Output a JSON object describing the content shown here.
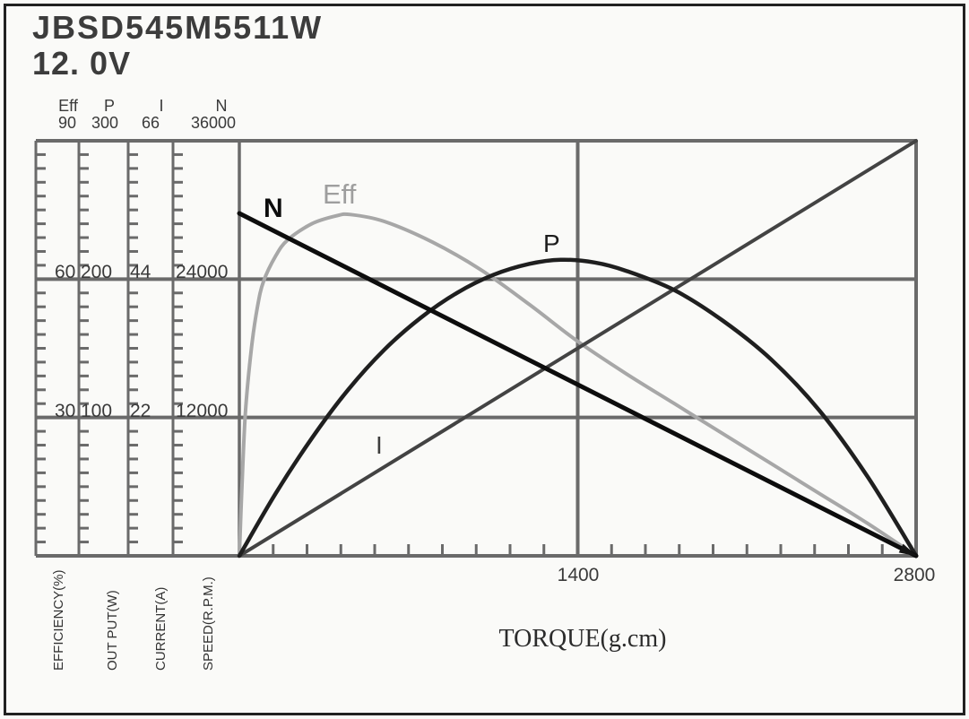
{
  "header": {
    "model": "JBSD545M5511W",
    "voltage": "12. 0V"
  },
  "scales": [
    {
      "name": "Eff",
      "top_value": "90",
      "mid_value": "60",
      "low_value": "30",
      "axis_label": "EFFICIENCY(%)"
    },
    {
      "name": "P",
      "top_value": "300",
      "mid_value": "200",
      "low_value": "100",
      "axis_label": "OUT PUT(W)"
    },
    {
      "name": "I",
      "top_value": "66",
      "mid_value": "44",
      "low_value": "22",
      "axis_label": "CURRENT(A)"
    },
    {
      "name": "N",
      "top_value": "36000",
      "mid_value": "24000",
      "low_value": "12000",
      "axis_label": "SPEED(R.P.M.)"
    }
  ],
  "x_axis": {
    "mid_tick": "1400",
    "end_tick": "2800",
    "label": "TORQUE(g.cm)"
  },
  "curve_labels": {
    "n": "N",
    "eff": "Eff",
    "p": "P",
    "i": "I"
  },
  "chart_data": {
    "type": "line",
    "title": "JBSD545M5511W 12.0V motor performance curves",
    "xlabel": "TORQUE(g.cm)",
    "x_range": [
      0,
      2800
    ],
    "x_major_ticks": [
      1400,
      2800
    ],
    "x_minor_tick_step": 140,
    "grid": true,
    "grid_color": "#6a6a6a",
    "legend_position": "on-curve",
    "axes": [
      {
        "name": "EFFICIENCY(%)",
        "range": [
          0,
          90
        ],
        "major_ticks": [
          30,
          60,
          90
        ]
      },
      {
        "name": "OUT PUT(W)",
        "range": [
          0,
          300
        ],
        "major_ticks": [
          100,
          200,
          300
        ]
      },
      {
        "name": "CURRENT(A)",
        "range": [
          0,
          66
        ],
        "major_ticks": [
          22,
          44,
          66
        ]
      },
      {
        "name": "SPEED(R.P.M.)",
        "range": [
          0,
          36000
        ],
        "major_ticks": [
          12000,
          24000,
          36000
        ]
      }
    ],
    "series": [
      {
        "name": "Eff",
        "axis": "EFFICIENCY(%)",
        "color": "#a7a7a7",
        "points": [
          [
            0,
            0
          ],
          [
            10,
            14
          ],
          [
            25,
            31
          ],
          [
            50,
            45
          ],
          [
            75,
            54
          ],
          [
            100,
            59.5
          ],
          [
            150,
            65
          ],
          [
            200,
            68.5
          ],
          [
            300,
            72
          ],
          [
            400,
            73.7
          ],
          [
            460,
            74
          ],
          [
            600,
            72.5
          ],
          [
            800,
            68
          ],
          [
            1000,
            62
          ],
          [
            1200,
            54.5
          ],
          [
            1400,
            46.5
          ],
          [
            1600,
            39.5
          ],
          [
            1800,
            33
          ],
          [
            2000,
            26.5
          ],
          [
            2200,
            20
          ],
          [
            2400,
            13.5
          ],
          [
            2600,
            7
          ],
          [
            2800,
            0
          ]
        ]
      },
      {
        "name": "I",
        "axis": "CURRENT(A)",
        "color": "#434343",
        "points": [
          [
            0,
            0
          ],
          [
            2800,
            66
          ]
        ]
      },
      {
        "name": "P",
        "axis": "OUT PUT(W)",
        "color": "#1f1f1f",
        "points": [
          [
            0,
            0
          ],
          [
            150,
            45
          ],
          [
            300,
            85
          ],
          [
            450,
            120
          ],
          [
            600,
            149
          ],
          [
            750,
            172
          ],
          [
            900,
            190
          ],
          [
            1050,
            203
          ],
          [
            1200,
            211
          ],
          [
            1330,
            214
          ],
          [
            1470,
            212
          ],
          [
            1600,
            206
          ],
          [
            1800,
            192
          ],
          [
            2000,
            170
          ],
          [
            2200,
            142
          ],
          [
            2400,
            105
          ],
          [
            2600,
            57
          ],
          [
            2800,
            0
          ]
        ]
      },
      {
        "name": "N",
        "axis": "SPEED(R.P.M.)",
        "color": "#0d0d0d",
        "points": [
          [
            0,
            29700
          ],
          [
            2800,
            0
          ]
        ]
      }
    ]
  }
}
